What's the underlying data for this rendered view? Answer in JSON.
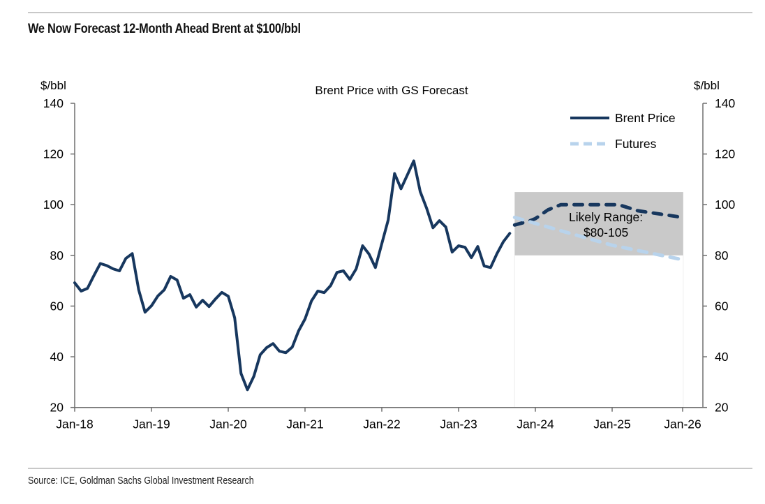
{
  "headline": "We Now Forecast 12-Month Ahead Brent at $100/bbl",
  "source": "Source: ICE, Goldman Sachs Global Investment Research",
  "chart_data": {
    "type": "line",
    "title": "Brent Price with GS Forecast",
    "ylabel_left": "$/bbl",
    "ylabel_right": "$/bbl",
    "ylim": [
      20,
      140
    ],
    "yticks": [
      20,
      40,
      60,
      80,
      100,
      120,
      140
    ],
    "xlim": [
      "2018-01",
      "2026-01"
    ],
    "xticks": [
      "Jan-18",
      "Jan-19",
      "Jan-20",
      "Jan-21",
      "Jan-22",
      "Jan-23",
      "Jan-24",
      "Jan-25",
      "Jan-26"
    ],
    "grid": false,
    "legend": {
      "placement": "top-right",
      "entries": [
        {
          "label": "Brent Price",
          "style": "solid",
          "color": "#17375e"
        },
        {
          "label": "Futures",
          "style": "dashed",
          "color": "#b8d3ec"
        }
      ]
    },
    "series": [
      {
        "name": "Brent Price",
        "style": "solid",
        "color": "#17375e",
        "start": "2018-01",
        "frequency": "monthly",
        "values": [
          69.2,
          65.9,
          67.0,
          72.0,
          76.8,
          76.0,
          74.7,
          73.9,
          78.8,
          80.7,
          66.4,
          57.6,
          60.1,
          64.0,
          66.4,
          71.7,
          70.3,
          63.1,
          64.5,
          59.6,
          62.3,
          59.8,
          62.8,
          65.4,
          63.9,
          55.4,
          33.4,
          27.0,
          32.3,
          40.8,
          43.6,
          45.2,
          42.2,
          41.6,
          43.8,
          50.2,
          54.9,
          62.0,
          65.9,
          65.3,
          68.1,
          73.3,
          73.9,
          70.5,
          74.7,
          83.8,
          80.5,
          75.2,
          84.6,
          94.0,
          112.3,
          106.3,
          111.8,
          117.3,
          105.2,
          98.6,
          90.9,
          93.7,
          91.2,
          81.3,
          83.8,
          83.2,
          79.1,
          83.5,
          75.8,
          75.2,
          80.7,
          85.4,
          88.7
        ]
      },
      {
        "name": "GS Forecast",
        "style": "dashed",
        "color": "#17375e",
        "points": [
          {
            "x": "2023-09",
            "y": 92.0
          },
          {
            "x": "2023-12",
            "y": 93.5
          },
          {
            "x": "2024-01",
            "y": 94.5
          },
          {
            "x": "2024-03",
            "y": 98.0
          },
          {
            "x": "2024-05",
            "y": 100.0
          },
          {
            "x": "2025-02",
            "y": 100.0
          },
          {
            "x": "2025-05",
            "y": 97.6
          },
          {
            "x": "2025-12",
            "y": 95.0
          }
        ]
      },
      {
        "name": "Futures",
        "style": "dashed",
        "color": "#b8d3ec",
        "points": [
          {
            "x": "2023-09",
            "y": 95.0
          },
          {
            "x": "2024-06",
            "y": 89.0
          },
          {
            "x": "2025-01",
            "y": 84.0
          },
          {
            "x": "2025-12",
            "y": 78.3
          }
        ]
      }
    ],
    "shaded_range": {
      "label_line1": "Likely Range:",
      "label_line2": "$80-105",
      "y_from": 80,
      "y_to": 105,
      "x_from": "2023-09",
      "x_to": "2025-12",
      "color": "#c9c9c9"
    }
  }
}
